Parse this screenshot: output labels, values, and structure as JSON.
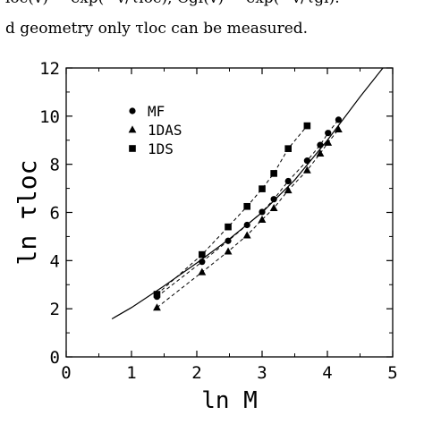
{
  "page_text": {
    "line1": "loc(v) ∼ exp(−v/τloc),       Cgl(v) ∼ exp(−v/τgl).",
    "line2": "d geometry only τloc can be measured."
  },
  "chart_data": {
    "type": "scatter",
    "xlabel": "ln M",
    "ylabel": "ln τloc",
    "xlim": [
      0,
      5
    ],
    "ylim": [
      0,
      12
    ],
    "x_ticks": [
      0,
      1,
      2,
      3,
      4,
      5
    ],
    "y_ticks": [
      0,
      2,
      4,
      6,
      8,
      10,
      12
    ],
    "legend_position": "top-left",
    "series": [
      {
        "name": "MF",
        "marker": "circle",
        "points": [
          [
            1.39,
            2.5
          ],
          [
            2.08,
            3.95
          ],
          [
            2.48,
            4.82
          ],
          [
            2.77,
            5.48
          ],
          [
            3.0,
            6.02
          ],
          [
            3.18,
            6.55
          ],
          [
            3.4,
            7.3
          ],
          [
            3.69,
            8.15
          ],
          [
            3.89,
            8.8
          ],
          [
            4.01,
            9.3
          ],
          [
            4.17,
            9.85
          ]
        ]
      },
      {
        "name": "1DAS",
        "marker": "triangle",
        "points": [
          [
            1.39,
            2.05
          ],
          [
            2.08,
            3.52
          ],
          [
            2.48,
            4.38
          ],
          [
            2.77,
            5.05
          ],
          [
            3.0,
            5.7
          ],
          [
            3.18,
            6.18
          ],
          [
            3.4,
            6.92
          ],
          [
            3.69,
            7.75
          ],
          [
            3.89,
            8.45
          ],
          [
            4.01,
            8.9
          ],
          [
            4.17,
            9.45
          ]
        ]
      },
      {
        "name": "1DS",
        "marker": "square",
        "points": [
          [
            1.39,
            2.6
          ],
          [
            2.08,
            4.25
          ],
          [
            2.48,
            5.4
          ],
          [
            2.77,
            6.25
          ],
          [
            3.0,
            6.98
          ],
          [
            3.18,
            7.62
          ],
          [
            3.4,
            8.65
          ],
          [
            3.69,
            9.6
          ]
        ]
      }
    ],
    "fit_curve": {
      "style": "solid",
      "points": [
        [
          0.7,
          1.58
        ],
        [
          1.0,
          2.05
        ],
        [
          1.5,
          2.95
        ],
        [
          2.0,
          3.9
        ],
        [
          2.5,
          4.9
        ],
        [
          3.0,
          6.0
        ],
        [
          3.5,
          7.35
        ],
        [
          4.0,
          9.0
        ],
        [
          4.5,
          10.8
        ],
        [
          4.85,
          12.0
        ]
      ]
    }
  }
}
